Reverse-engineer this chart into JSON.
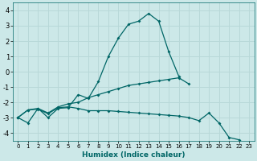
{
  "xlabel": "Humidex (Indice chaleur)",
  "xlim": [
    -0.5,
    23.5
  ],
  "ylim": [
    -4.5,
    4.5
  ],
  "xticks": [
    0,
    1,
    2,
    3,
    4,
    5,
    6,
    7,
    8,
    9,
    10,
    11,
    12,
    13,
    14,
    15,
    16,
    17,
    18,
    19,
    20,
    21,
    22,
    23
  ],
  "yticks": [
    -4,
    -3,
    -2,
    -1,
    0,
    1,
    2,
    3,
    4
  ],
  "bg_color": "#cce8e8",
  "grid_color": "#b8d8d8",
  "line_color": "#006666",
  "lines": [
    {
      "x": [
        0,
        1,
        2,
        3,
        4,
        5,
        6,
        7,
        8,
        9,
        10,
        11,
        12,
        13,
        14,
        15,
        16,
        17
      ],
      "y": [
        -3.0,
        -3.35,
        -2.4,
        -3.0,
        -2.4,
        -2.35,
        -1.5,
        -1.75,
        -0.65,
        1.0,
        2.2,
        3.1,
        3.3,
        3.8,
        3.3,
        1.3,
        -0.3,
        null
      ]
    },
    {
      "x": [
        0,
        1,
        2,
        3,
        4,
        5,
        6,
        7,
        8,
        9,
        10,
        11,
        12,
        13,
        14,
        15,
        16,
        17,
        18,
        19,
        20
      ],
      "y": [
        -3.0,
        -2.5,
        -2.4,
        -2.7,
        -2.3,
        -2.1,
        -2.0,
        -1.7,
        -1.5,
        -1.3,
        -1.1,
        -0.9,
        -0.8,
        -0.7,
        -0.6,
        -0.5,
        -0.4,
        -0.8,
        null,
        null,
        null
      ]
    },
    {
      "x": [
        0,
        1,
        2,
        3,
        4,
        5,
        6,
        7,
        8,
        9,
        10,
        11,
        12,
        13,
        14,
        15,
        16,
        17,
        18,
        19,
        20,
        21,
        22
      ],
      "y": [
        -3.0,
        -2.5,
        -2.45,
        -2.75,
        -2.35,
        -2.3,
        -2.4,
        -2.55,
        -2.55,
        -2.55,
        -2.6,
        -2.65,
        -2.7,
        -2.75,
        -2.8,
        -2.85,
        -2.9,
        -3.0,
        -3.2,
        -2.7,
        -3.35,
        -4.3,
        -4.45
      ]
    }
  ]
}
